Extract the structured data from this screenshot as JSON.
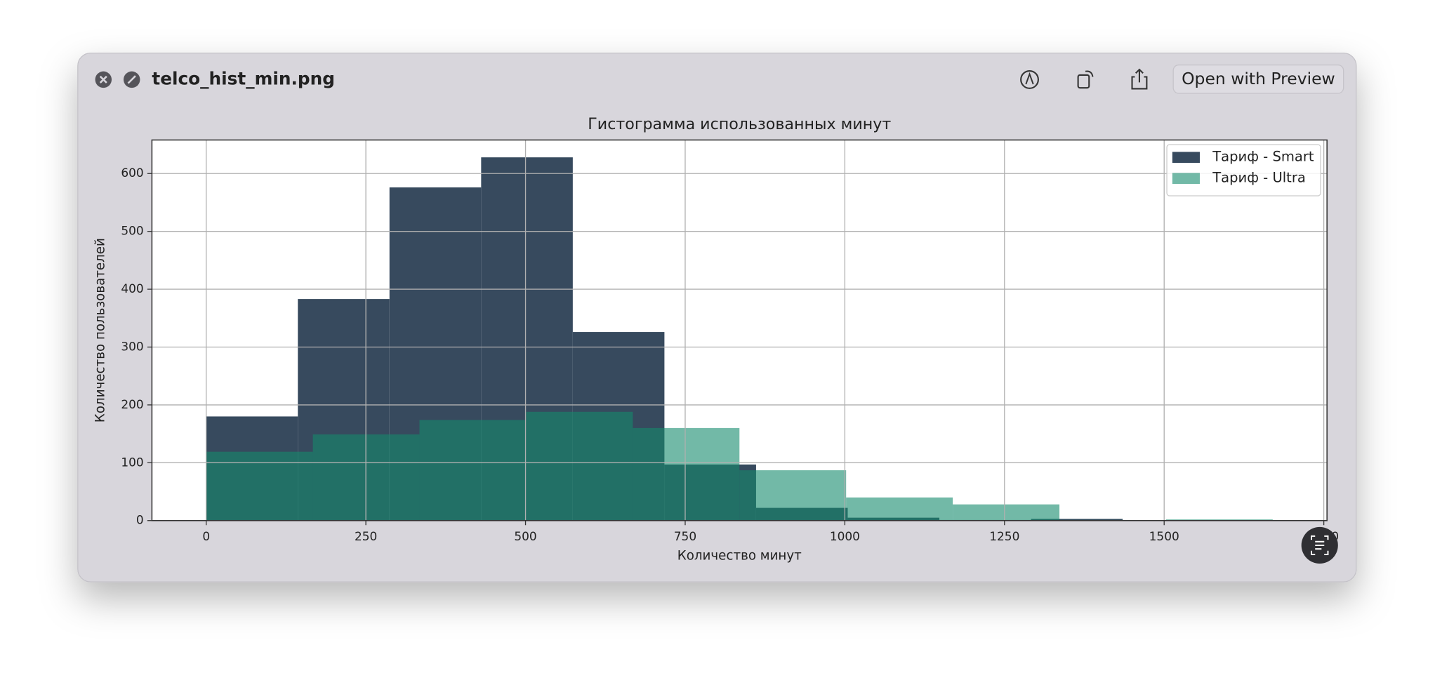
{
  "window": {
    "title": "telco_hist_min.png",
    "open_button": "Open with Preview"
  },
  "chart_data": {
    "type": "histogram",
    "title": "Гистограмма использованных минут",
    "xlabel": "Количество минут",
    "ylabel": "Количество пользователей",
    "series": [
      {
        "name": "Тариф - Smart",
        "color": "#374a5e",
        "opacity": 1,
        "bins": [
          0,
          143.5,
          287,
          430.5,
          574,
          717.5,
          861,
          1004.5,
          1148,
          1291.5,
          1435
        ],
        "values": [
          180,
          383,
          576,
          628,
          326,
          97,
          22,
          5,
          1,
          3
        ]
      },
      {
        "name": "Тариф - Ultra",
        "color": "#148a6c",
        "opacity": 0.6,
        "bins": [
          0,
          167,
          334,
          501,
          668,
          835,
          1002,
          1169,
          1336,
          1503,
          1670
        ],
        "values": [
          119,
          149,
          174,
          188,
          160,
          87,
          40,
          28,
          1,
          2
        ]
      }
    ],
    "xlim": [
      -85,
      1755
    ],
    "ylim": [
      0,
      658
    ],
    "xticks": [
      0,
      250,
      500,
      750,
      1000,
      1250,
      1500,
      1750
    ],
    "yticks": [
      0,
      100,
      200,
      300,
      400,
      500,
      600
    ],
    "grid": true,
    "legend": "upper right"
  }
}
